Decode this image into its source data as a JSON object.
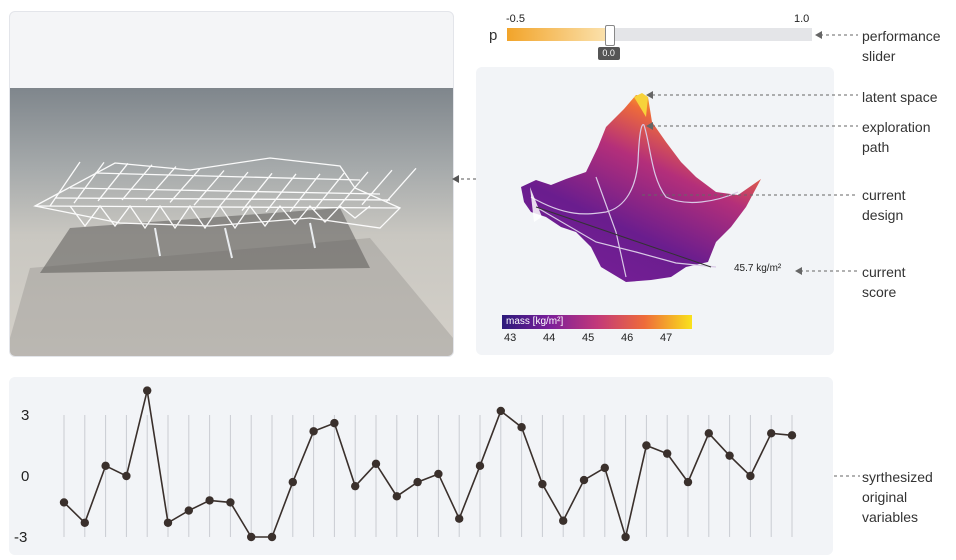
{
  "slider": {
    "name": "p",
    "min_label": "-0.5",
    "max_label": "1.0",
    "value_label": "0.0",
    "value": 0.0,
    "min": -0.5,
    "max": 1.0
  },
  "annotations": {
    "performance_slider": [
      "performance",
      "slider"
    ],
    "latent_space": [
      "latent space"
    ],
    "exploration_path": [
      "exploration",
      "path"
    ],
    "current_design": [
      "current",
      "design"
    ],
    "current_score": [
      "current",
      "score"
    ],
    "synthesized": [
      "syrthesized",
      "original",
      "variables"
    ]
  },
  "score": {
    "text": "45.7 kg/m²"
  },
  "colorbar": {
    "label": "mass [kg/m²]",
    "ticks": [
      "43",
      "44",
      "45",
      "46",
      "47"
    ],
    "colors": [
      "#2b1a7a",
      "#7b1f9a",
      "#c2387a",
      "#ee6b3a",
      "#f9e21c"
    ]
  },
  "chart_data": {
    "type": "line",
    "ylim": [
      -3,
      3
    ],
    "ytick_labels": [
      "3",
      "0",
      "-3"
    ],
    "values": [
      -1.3,
      -2.3,
      0.5,
      0.0,
      4.2,
      -2.3,
      -1.7,
      -1.2,
      -1.3,
      -3.0,
      -3.0,
      -0.3,
      2.2,
      2.6,
      -0.5,
      0.6,
      -1.0,
      -0.3,
      0.1,
      -2.1,
      0.5,
      3.2,
      2.4,
      -0.4,
      -2.2,
      -0.2,
      0.4,
      -3.0,
      1.5,
      1.1,
      -0.3,
      2.1,
      1.0,
      0.0,
      2.1,
      2.0
    ]
  }
}
